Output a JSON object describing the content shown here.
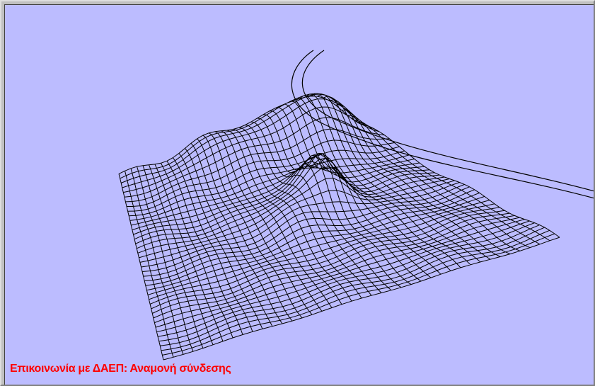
{
  "status": "Επικοινωνία με ΔΑΕΠ: Αναμονή σύνδεσης"
}
